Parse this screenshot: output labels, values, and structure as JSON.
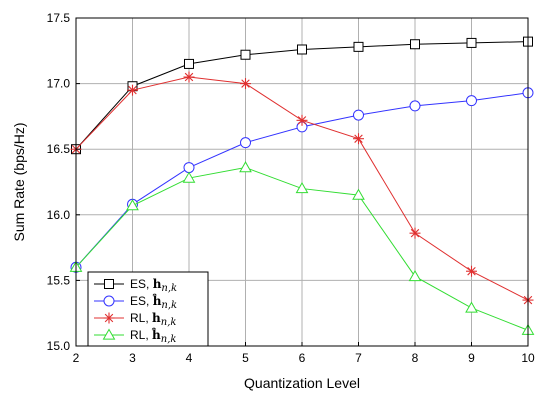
{
  "chart_data": {
    "type": "line",
    "xlabel": "Quantization Level",
    "ylabel": "Sum Rate (bps/Hz)",
    "xlim": [
      2,
      10
    ],
    "ylim": [
      15.0,
      17.5
    ],
    "x_ticks": [
      "2",
      "3",
      "4",
      "5",
      "6",
      "7",
      "8",
      "9",
      "10"
    ],
    "y_ticks": [
      "15.0",
      "15.5",
      "16.0",
      "16.5",
      "17.0",
      "17.5"
    ],
    "grid": true,
    "legend_position": "bottom-left",
    "x": [
      2,
      3,
      4,
      5,
      6,
      7,
      8,
      9,
      10
    ],
    "series": [
      {
        "name": "ES, h_{n,k}",
        "legend_prefix": "ES,",
        "legend_symbol": "h",
        "legend_hat": false,
        "legend_subscript": "n,k",
        "color": "#000000",
        "marker": "square",
        "values": [
          16.5,
          16.98,
          17.15,
          17.22,
          17.26,
          17.28,
          17.3,
          17.31,
          17.32
        ]
      },
      {
        "name": "ES, ĥ_{n,k}",
        "legend_prefix": "ES,",
        "legend_symbol": "h",
        "legend_hat": true,
        "legend_subscript": "n,k",
        "color": "#3333ff",
        "marker": "circle",
        "values": [
          15.6,
          16.08,
          16.36,
          16.55,
          16.67,
          16.76,
          16.83,
          16.87,
          16.93
        ]
      },
      {
        "name": "RL, h_{n,k}",
        "legend_prefix": "RL,",
        "legend_symbol": "h",
        "legend_hat": false,
        "legend_subscript": "n,k",
        "color": "#e03030",
        "marker": "asterisk",
        "values": [
          16.5,
          16.95,
          17.05,
          17.0,
          16.72,
          16.58,
          15.86,
          15.57,
          15.35
        ]
      },
      {
        "name": "RL, ĥ_{n,k}",
        "legend_prefix": "RL,",
        "legend_symbol": "h",
        "legend_hat": true,
        "legend_subscript": "n,k",
        "color": "#33dd33",
        "marker": "triangle",
        "values": [
          15.6,
          16.07,
          16.28,
          16.36,
          16.2,
          16.15,
          15.53,
          15.29,
          15.12
        ]
      }
    ]
  }
}
